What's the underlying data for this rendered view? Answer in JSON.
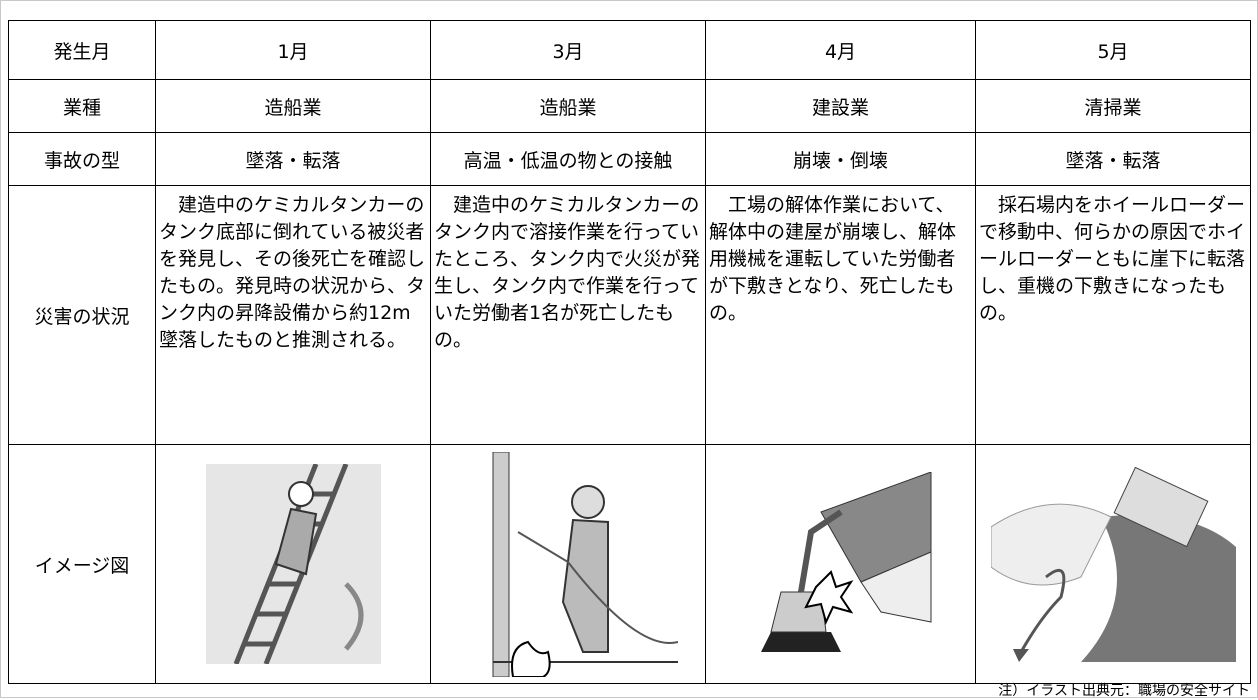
{
  "table": {
    "header": [
      "発生月",
      "1月",
      "3月",
      "4月",
      "5月"
    ],
    "rows": [
      [
        "業種",
        "造船業",
        "造船業",
        "建設業",
        "清掃業"
      ],
      [
        "事故の型",
        "墜落・転落",
        "高温・低温の物との接触",
        "崩壊・倒壊",
        "墜落・転落"
      ],
      [
        "災害の状況",
        "建造中のケミカルタンカーのタンク底部に倒れている被災者を発見し、その後死亡を確認したもの。発見時の状況から、タンク内の昇降設備から約12m墜落したものと推測される。",
        "建造中のケミカルタンカーのタンク内で溶接作業を行っていたところ、タンク内で火災が発生し、タンク内で作業を行っていた労働者1名が死亡したもの。",
        "工場の解体作業において、解体中の建屋が崩壊し、解体用機械を運転していた労働者が下敷きとなり、死亡したもの。",
        "採石場内をホイールローダーで移動中、何らかの原因でホイールローダーともに崖下に転落し、重機の下敷きになったもの。"
      ],
      [
        "イメージ図"
      ]
    ]
  },
  "note": "注）イラスト出典元：職場の安全サイト"
}
